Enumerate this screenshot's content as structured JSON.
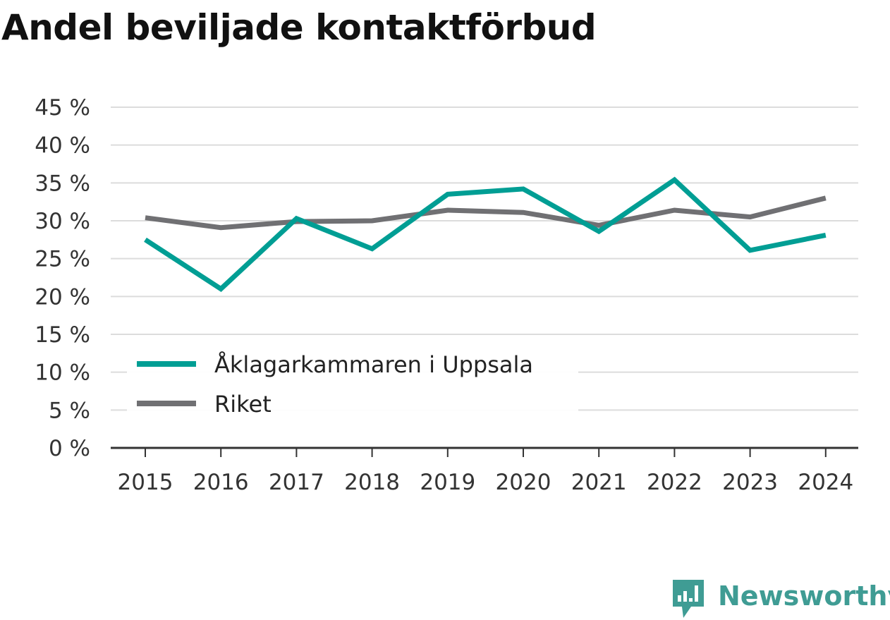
{
  "title": "Andel beviljade kontaktförbud",
  "brand": {
    "name": "Newsworthy",
    "icon": "newsworthy-logo-icon",
    "color": "#3f9c94"
  },
  "chart_data": {
    "type": "line",
    "title": "Andel beviljade kontaktförbud",
    "xlabel": "",
    "ylabel": "",
    "categories": [
      "2015",
      "2016",
      "2017",
      "2018",
      "2019",
      "2020",
      "2021",
      "2022",
      "2023",
      "2024"
    ],
    "ylim": [
      0,
      45
    ],
    "yticks": [
      0,
      5,
      10,
      15,
      20,
      25,
      30,
      35,
      40,
      45
    ],
    "ytick_labels": [
      "0 %",
      "5 %",
      "10 %",
      "15 %",
      "20 %",
      "25 %",
      "30 %",
      "35 %",
      "40 %",
      "45 %"
    ],
    "grid": true,
    "legend_position": "bottom-left",
    "series": [
      {
        "name": "Åklagarkammaren i Uppsala",
        "color": "#009e94",
        "values": [
          27.5,
          21.0,
          30.3,
          26.3,
          33.5,
          34.2,
          28.6,
          35.4,
          26.1,
          28.1
        ]
      },
      {
        "name": "Riket",
        "color": "#707073",
        "values": [
          30.4,
          29.1,
          29.9,
          30.0,
          31.4,
          31.1,
          29.4,
          31.4,
          30.5,
          33.0
        ]
      }
    ]
  }
}
